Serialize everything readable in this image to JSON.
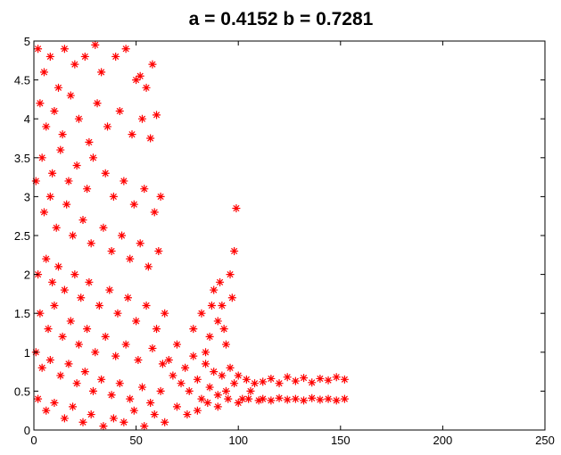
{
  "chart_data": {
    "type": "scatter",
    "title": "a = 0.4152  b = 0.7281",
    "xlabel": "",
    "ylabel": "",
    "xlim": [
      0,
      250
    ],
    "ylim": [
      0,
      5
    ],
    "x_ticks": [
      0,
      50,
      100,
      150,
      200,
      250
    ],
    "y_ticks": [
      0,
      0.5,
      1,
      1.5,
      2,
      2.5,
      3,
      3.5,
      4,
      4.5,
      5
    ],
    "x_tick_labels": [
      "0",
      "50",
      "100",
      "150",
      "200",
      "250"
    ],
    "y_tick_labels": [
      "0",
      "0.5",
      "1",
      "1.5",
      "2",
      "2.5",
      "3",
      "3.5",
      "4",
      "4.5",
      "5"
    ],
    "grid": false,
    "legend": "none",
    "marker": "*",
    "marker_color": "#ff0000",
    "series": [
      {
        "points": [
          [
            2,
            4.9
          ],
          [
            5,
            4.6
          ],
          [
            8,
            4.8
          ],
          [
            12,
            4.4
          ],
          [
            15,
            4.9
          ],
          [
            20,
            4.7
          ],
          [
            25,
            4.8
          ],
          [
            30,
            4.95
          ],
          [
            33,
            4.6
          ],
          [
            40,
            4.8
          ],
          [
            45,
            4.9
          ],
          [
            50,
            4.5
          ],
          [
            55,
            4.4
          ],
          [
            58,
            4.7
          ],
          [
            52,
            4.55
          ],
          [
            3,
            4.2
          ],
          [
            6,
            3.9
          ],
          [
            10,
            4.1
          ],
          [
            14,
            3.8
          ],
          [
            18,
            4.3
          ],
          [
            22,
            4.0
          ],
          [
            27,
            3.7
          ],
          [
            31,
            4.2
          ],
          [
            36,
            3.9
          ],
          [
            42,
            4.1
          ],
          [
            48,
            3.8
          ],
          [
            53,
            4.0
          ],
          [
            60,
            4.05
          ],
          [
            57,
            3.75
          ],
          [
            4,
            3.5
          ],
          [
            9,
            3.3
          ],
          [
            13,
            3.6
          ],
          [
            17,
            3.2
          ],
          [
            21,
            3.4
          ],
          [
            26,
            3.1
          ],
          [
            29,
            3.5
          ],
          [
            35,
            3.3
          ],
          [
            39,
            3.0
          ],
          [
            44,
            3.2
          ],
          [
            49,
            2.9
          ],
          [
            54,
            3.1
          ],
          [
            59,
            2.8
          ],
          [
            62,
            3.0
          ],
          [
            1,
            3.2
          ],
          [
            5,
            2.8
          ],
          [
            8,
            3.0
          ],
          [
            11,
            2.6
          ],
          [
            16,
            2.9
          ],
          [
            19,
            2.5
          ],
          [
            24,
            2.7
          ],
          [
            28,
            2.4
          ],
          [
            34,
            2.6
          ],
          [
            38,
            2.3
          ],
          [
            43,
            2.5
          ],
          [
            47,
            2.2
          ],
          [
            52,
            2.4
          ],
          [
            56,
            2.1
          ],
          [
            61,
            2.3
          ],
          [
            2,
            2.0
          ],
          [
            6,
            2.2
          ],
          [
            9,
            1.9
          ],
          [
            12,
            2.1
          ],
          [
            15,
            1.8
          ],
          [
            20,
            2.0
          ],
          [
            23,
            1.7
          ],
          [
            27,
            1.9
          ],
          [
            32,
            1.6
          ],
          [
            37,
            1.8
          ],
          [
            41,
            1.5
          ],
          [
            46,
            1.7
          ],
          [
            50,
            1.4
          ],
          [
            55,
            1.6
          ],
          [
            60,
            1.3
          ],
          [
            64,
            1.5
          ],
          [
            3,
            1.5
          ],
          [
            7,
            1.3
          ],
          [
            10,
            1.6
          ],
          [
            14,
            1.2
          ],
          [
            18,
            1.4
          ],
          [
            22,
            1.1
          ],
          [
            26,
            1.3
          ],
          [
            30,
            1.0
          ],
          [
            35,
            1.2
          ],
          [
            40,
            0.95
          ],
          [
            45,
            1.1
          ],
          [
            51,
            0.9
          ],
          [
            58,
            1.05
          ],
          [
            63,
            0.85
          ],
          [
            1,
            1.0
          ],
          [
            4,
            0.8
          ],
          [
            8,
            0.9
          ],
          [
            13,
            0.7
          ],
          [
            17,
            0.85
          ],
          [
            21,
            0.6
          ],
          [
            25,
            0.75
          ],
          [
            29,
            0.5
          ],
          [
            33,
            0.65
          ],
          [
            38,
            0.45
          ],
          [
            42,
            0.6
          ],
          [
            47,
            0.4
          ],
          [
            53,
            0.55
          ],
          [
            57,
            0.35
          ],
          [
            62,
            0.5
          ],
          [
            2,
            0.4
          ],
          [
            6,
            0.25
          ],
          [
            10,
            0.35
          ],
          [
            15,
            0.15
          ],
          [
            19,
            0.3
          ],
          [
            24,
            0.1
          ],
          [
            28,
            0.2
          ],
          [
            34,
            0.05
          ],
          [
            39,
            0.15
          ],
          [
            44,
            0.1
          ],
          [
            49,
            0.25
          ],
          [
            54,
            0.05
          ],
          [
            59,
            0.2
          ],
          [
            64,
            0.1
          ],
          [
            66,
            0.9
          ],
          [
            68,
            0.7
          ],
          [
            70,
            1.1
          ],
          [
            72,
            0.6
          ],
          [
            74,
            0.8
          ],
          [
            76,
            0.5
          ],
          [
            78,
            0.95
          ],
          [
            80,
            0.65
          ],
          [
            82,
            0.4
          ],
          [
            84,
            0.85
          ],
          [
            86,
            0.55
          ],
          [
            88,
            0.75
          ],
          [
            90,
            0.45
          ],
          [
            92,
            0.7
          ],
          [
            94,
            0.5
          ],
          [
            96,
            0.8
          ],
          [
            98,
            0.6
          ],
          [
            100,
            0.7
          ],
          [
            102,
            0.4
          ],
          [
            104,
            0.65
          ],
          [
            106,
            0.5
          ],
          [
            108,
            0.6
          ],
          [
            70,
            0.3
          ],
          [
            75,
            0.2
          ],
          [
            80,
            0.25
          ],
          [
            85,
            0.35
          ],
          [
            90,
            0.3
          ],
          [
            95,
            0.4
          ],
          [
            100,
            0.35
          ],
          [
            105,
            0.4
          ],
          [
            110,
            0.38
          ],
          [
            78,
            1.3
          ],
          [
            82,
            1.5
          ],
          [
            86,
            1.2
          ],
          [
            88,
            1.8
          ],
          [
            90,
            1.4
          ],
          [
            92,
            1.6
          ],
          [
            94,
            1.1
          ],
          [
            96,
            2.0
          ],
          [
            98,
            2.3
          ],
          [
            99,
            2.85
          ],
          [
            97,
            1.7
          ],
          [
            93,
            1.3
          ],
          [
            91,
            1.9
          ],
          [
            87,
            1.6
          ],
          [
            84,
            1.0
          ],
          [
            112,
            0.62
          ],
          [
            116,
            0.66
          ],
          [
            120,
            0.6
          ],
          [
            124,
            0.68
          ],
          [
            128,
            0.63
          ],
          [
            132,
            0.67
          ],
          [
            136,
            0.61
          ],
          [
            140,
            0.66
          ],
          [
            144,
            0.64
          ],
          [
            148,
            0.68
          ],
          [
            152,
            0.65
          ],
          [
            112,
            0.4
          ],
          [
            116,
            0.38
          ],
          [
            120,
            0.41
          ],
          [
            124,
            0.39
          ],
          [
            128,
            0.4
          ],
          [
            132,
            0.38
          ],
          [
            136,
            0.41
          ],
          [
            140,
            0.39
          ],
          [
            144,
            0.4
          ],
          [
            148,
            0.38
          ],
          [
            152,
            0.4
          ]
        ]
      }
    ]
  }
}
